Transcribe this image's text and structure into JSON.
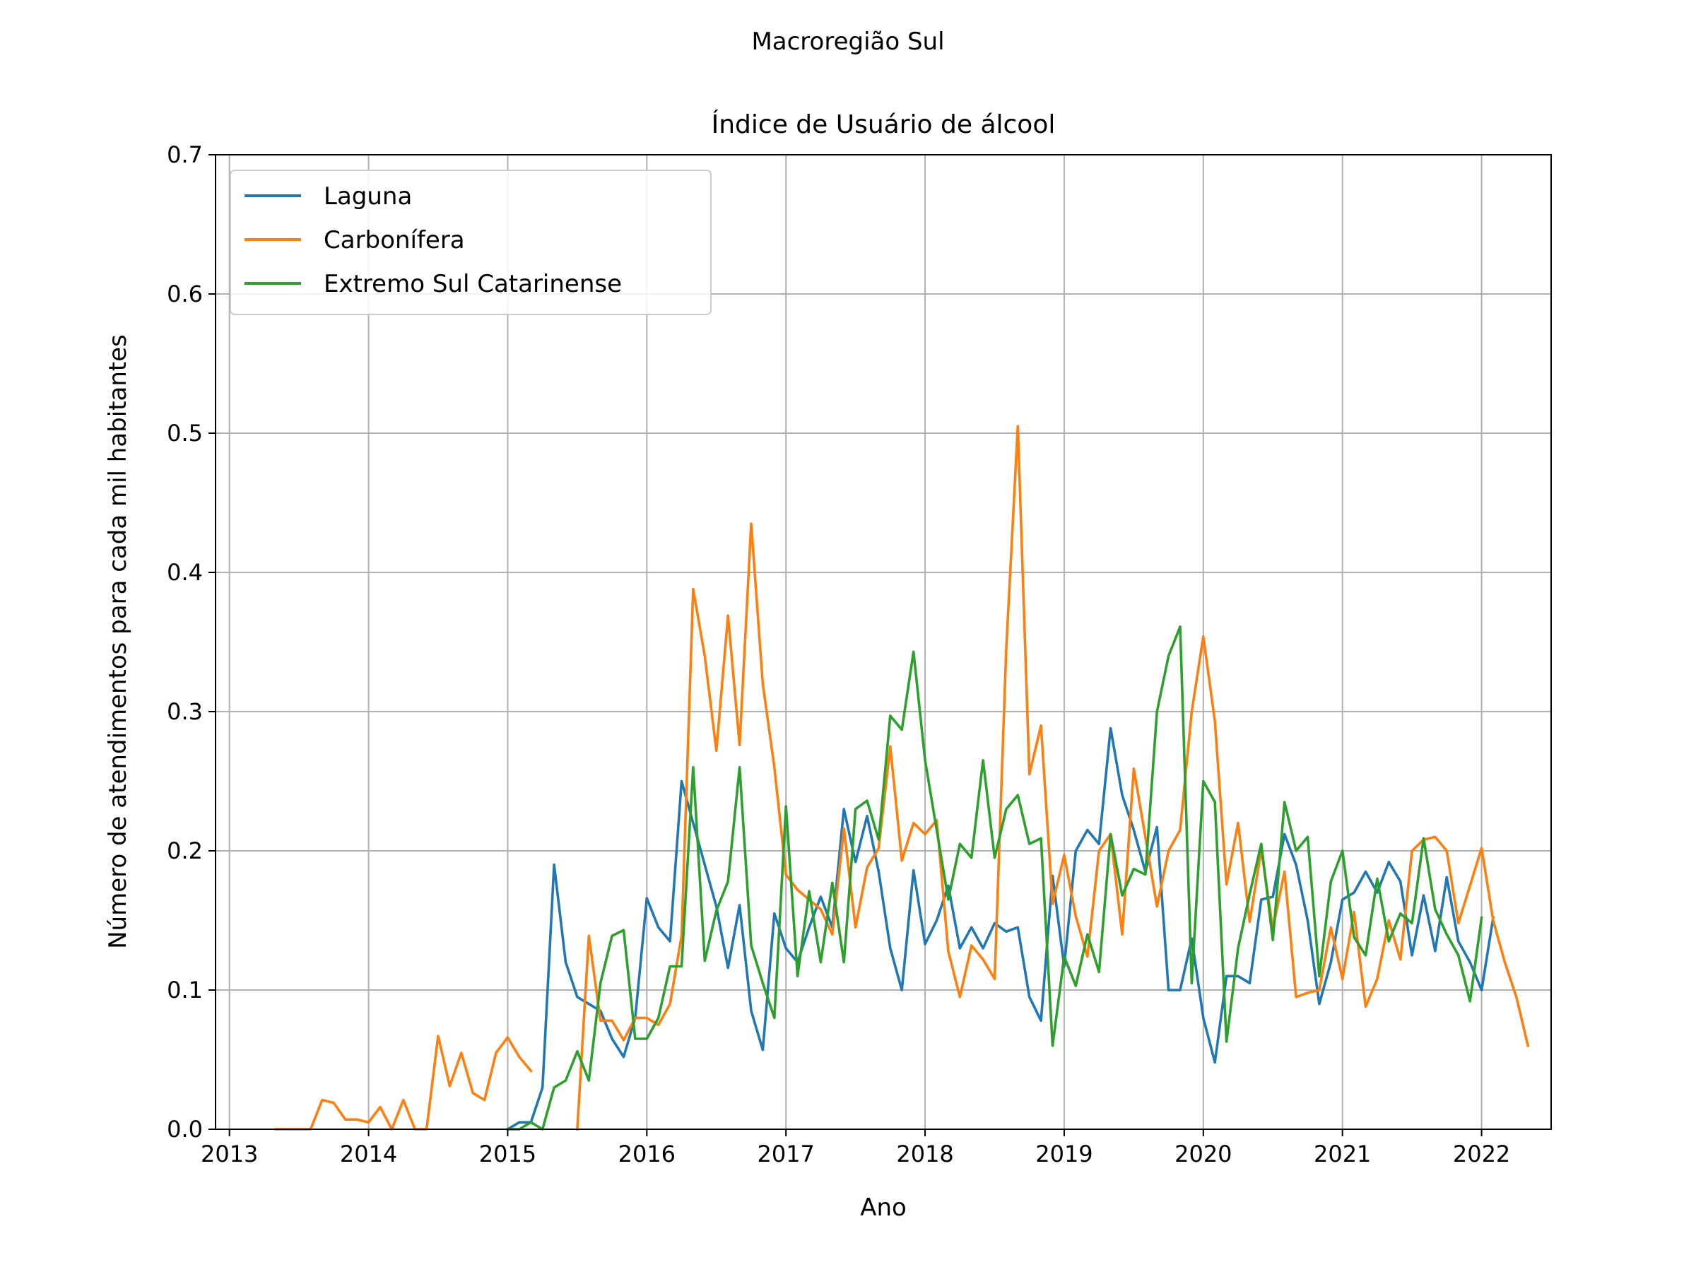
{
  "suptitle": "Macroregião Sul",
  "chart_data": {
    "type": "line",
    "title": "Índice de Usuário de álcool",
    "xlabel": "Ano",
    "ylabel": "Número de atendimentos para cada mil habitantes",
    "xlim": [
      2012.9,
      2022.5
    ],
    "ylim": [
      0,
      0.7
    ],
    "xticks": [
      2013,
      2014,
      2015,
      2016,
      2017,
      2018,
      2019,
      2020,
      2021,
      2022
    ],
    "xtick_labels": [
      "2013",
      "2014",
      "2015",
      "2016",
      "2017",
      "2018",
      "2019",
      "2020",
      "2021",
      "2022"
    ],
    "yticks": [
      0.0,
      0.1,
      0.2,
      0.3,
      0.4,
      0.5,
      0.6,
      0.7
    ],
    "ytick_labels": [
      "0.0",
      "0.1",
      "0.2",
      "0.3",
      "0.4",
      "0.5",
      "0.6",
      "0.7"
    ],
    "grid": true,
    "legend_position": "upper-left",
    "series": [
      {
        "name": "Laguna",
        "color": "#1f77b4",
        "start": [
          2015,
          1
        ],
        "values": [
          0.0,
          0.005,
          0.005,
          0.03,
          0.19,
          0.12,
          0.095,
          0.09,
          0.085,
          0.065,
          0.052,
          0.08,
          0.166,
          0.145,
          0.135,
          0.25,
          0.22,
          0.19,
          0.16,
          0.116,
          0.161,
          0.085,
          0.057,
          0.155,
          0.13,
          0.12,
          0.145,
          0.167,
          0.145,
          0.23,
          0.192,
          0.225,
          0.185,
          0.13,
          0.1,
          0.186,
          0.133,
          0.15,
          0.175,
          0.13,
          0.145,
          0.13,
          0.148,
          0.142,
          0.145,
          0.095,
          0.078,
          0.182,
          0.117,
          0.2,
          0.215,
          0.205,
          0.288,
          0.24,
          0.215,
          0.185,
          0.217,
          0.1,
          0.1,
          0.137,
          0.08,
          0.048,
          0.11,
          0.11,
          0.105,
          0.165,
          0.167,
          0.212,
          0.19,
          0.15,
          0.09,
          0.12,
          0.165,
          0.17,
          0.185,
          0.17,
          0.192,
          0.178,
          0.125,
          0.168,
          0.128,
          0.181,
          0.135,
          0.12,
          0.1,
          0.152
        ]
      },
      {
        "name": "Carbonífera",
        "color": "#ff7f0e",
        "start": [
          2013,
          5
        ],
        "segments": [
          [
            0.0,
            0.0,
            0.0,
            0.0,
            0.021,
            0.019,
            0.007,
            0.007,
            0.005,
            0.016,
            0.0,
            0.021,
            0.0,
            0.0,
            0.067,
            0.031,
            0.055,
            0.026,
            0.021,
            0.055,
            0.066,
            0.052,
            0.042
          ],
          null,
          null,
          null,
          [
            0.0,
            0.139,
            0.078,
            0.078,
            0.064,
            0.08,
            0.08,
            0.075,
            0.09,
            0.139,
            0.388,
            0.34,
            0.272,
            0.369,
            0.276,
            0.435,
            0.32,
            0.26,
            0.183,
            0.172,
            0.165,
            0.158,
            0.14,
            0.216,
            0.145,
            0.188,
            0.202,
            0.275,
            0.193,
            0.22,
            0.212,
            0.222,
            0.128,
            0.095,
            0.132,
            0.122,
            0.108,
            0.345,
            0.505,
            0.255,
            0.29,
            0.162,
            0.197,
            0.153,
            0.124,
            0.2,
            0.212,
            0.14,
            0.259,
            0.21,
            0.16,
            0.2,
            0.215,
            0.3,
            0.354,
            0.293,
            0.176,
            0.22,
            0.149,
            0.201,
            0.144,
            0.185,
            0.095,
            0.098,
            0.1,
            0.145,
            0.108,
            0.156,
            0.088,
            0.108,
            0.15,
            0.122,
            0.2,
            0.208,
            0.21,
            0.2,
            0.148,
            0.175,
            0.202,
            0.15,
            0.12,
            0.095,
            0.06
          ]
        ]
      },
      {
        "name": "Extremo Sul Catarinense",
        "color": "#2ca02c",
        "start": [
          2015,
          1
        ],
        "values": [
          0.0,
          0.0,
          0.005,
          0.0,
          0.03,
          0.035,
          0.056,
          0.035,
          0.105,
          0.139,
          0.143,
          0.065,
          0.065,
          0.08,
          0.117,
          0.117,
          0.26,
          0.121,
          0.157,
          0.178,
          0.26,
          0.132,
          0.105,
          0.08,
          0.232,
          0.11,
          0.171,
          0.12,
          0.177,
          0.12,
          0.23,
          0.236,
          0.208,
          0.297,
          0.287,
          0.343,
          0.265,
          0.215,
          0.165,
          0.205,
          0.195,
          0.265,
          0.195,
          0.23,
          0.24,
          0.205,
          0.209,
          0.06,
          0.124,
          0.103,
          0.14,
          0.113,
          0.212,
          0.168,
          0.187,
          0.183,
          0.3,
          0.34,
          0.361,
          0.105,
          0.25,
          0.235,
          0.063,
          0.13,
          0.169,
          0.205,
          0.136,
          0.235,
          0.2,
          0.21,
          0.11,
          0.178,
          0.2,
          0.138,
          0.125,
          0.18,
          0.135,
          0.155,
          0.148,
          0.209,
          0.158,
          0.14,
          0.125,
          0.092,
          0.152
        ]
      }
    ]
  }
}
